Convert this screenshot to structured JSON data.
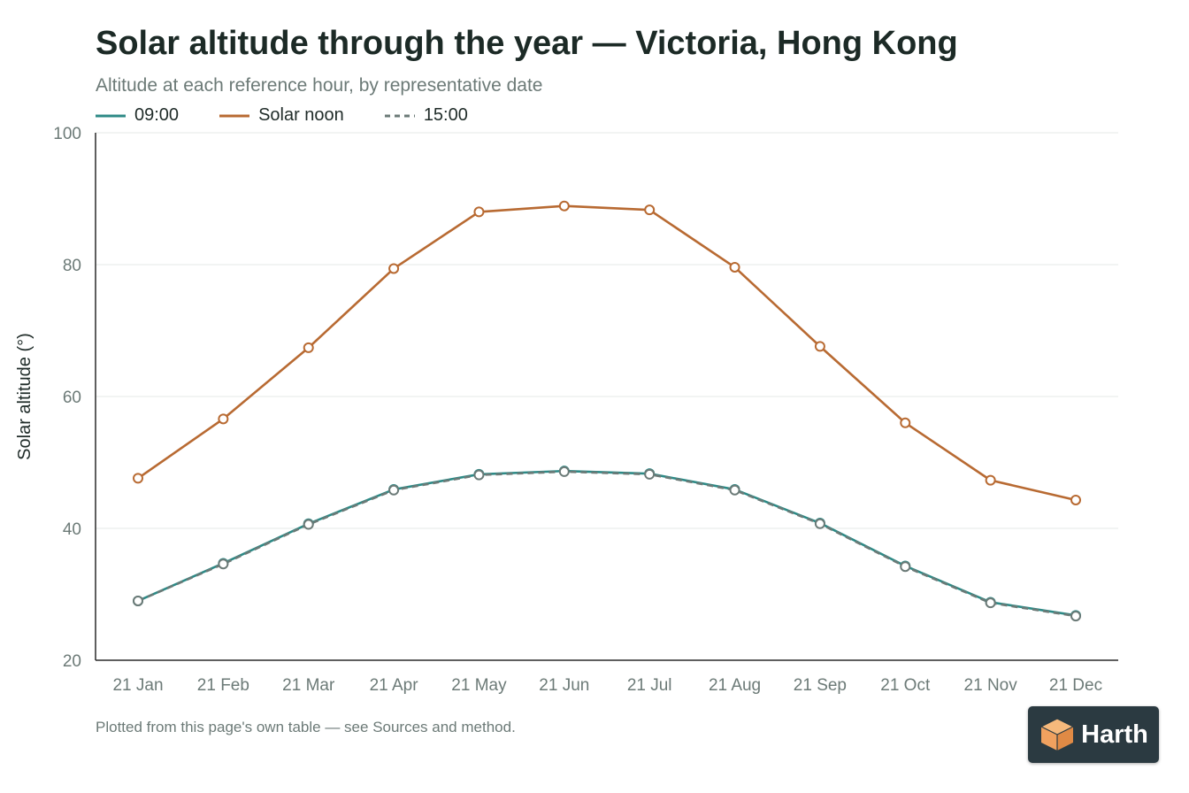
{
  "header": {
    "title": "Solar altitude through the year — Victoria, Hong Kong",
    "subtitle": "Altitude at each reference hour, by representative date"
  },
  "footnote": "Plotted from this page's own table — see Sources and method.",
  "brand": {
    "name": "Harth",
    "logo_icon": "cube-icon"
  },
  "colors": {
    "morning": "#2d8a86",
    "noon": "#b86a32",
    "afternoon": "#6b7a77",
    "axis": "#2a2a2a",
    "grid": "#e6e8e7",
    "tick_text": "#6c7a77"
  },
  "chart_data": {
    "type": "line",
    "title": "Solar altitude through the year — Victoria, Hong Kong",
    "subtitle": "Altitude at each reference hour, by representative date",
    "xlabel": "",
    "ylabel": "Solar altitude (°)",
    "categories": [
      "21 Jan",
      "21 Feb",
      "21 Mar",
      "21 Apr",
      "21 May",
      "21 Jun",
      "21 Jul",
      "21 Aug",
      "21 Sep",
      "21 Oct",
      "21 Nov",
      "21 Dec"
    ],
    "ylim": [
      20,
      100
    ],
    "yticks": [
      20,
      40,
      60,
      80,
      100
    ],
    "grid": true,
    "legend_position": "top-left",
    "series": [
      {
        "name": "09:00",
        "style": "solid",
        "values": [
          29.0,
          34.7,
          40.7,
          45.9,
          48.2,
          48.7,
          48.3,
          45.9,
          40.8,
          34.3,
          28.8,
          26.8
        ]
      },
      {
        "name": "Solar noon",
        "style": "solid",
        "values": [
          47.6,
          56.6,
          67.4,
          79.4,
          88.0,
          88.9,
          88.3,
          79.6,
          67.6,
          56.0,
          47.3,
          44.3
        ]
      },
      {
        "name": "15:00",
        "style": "dashed",
        "values": [
          29.0,
          34.6,
          40.6,
          45.8,
          48.1,
          48.6,
          48.2,
          45.8,
          40.7,
          34.2,
          28.7,
          26.7
        ]
      }
    ]
  }
}
